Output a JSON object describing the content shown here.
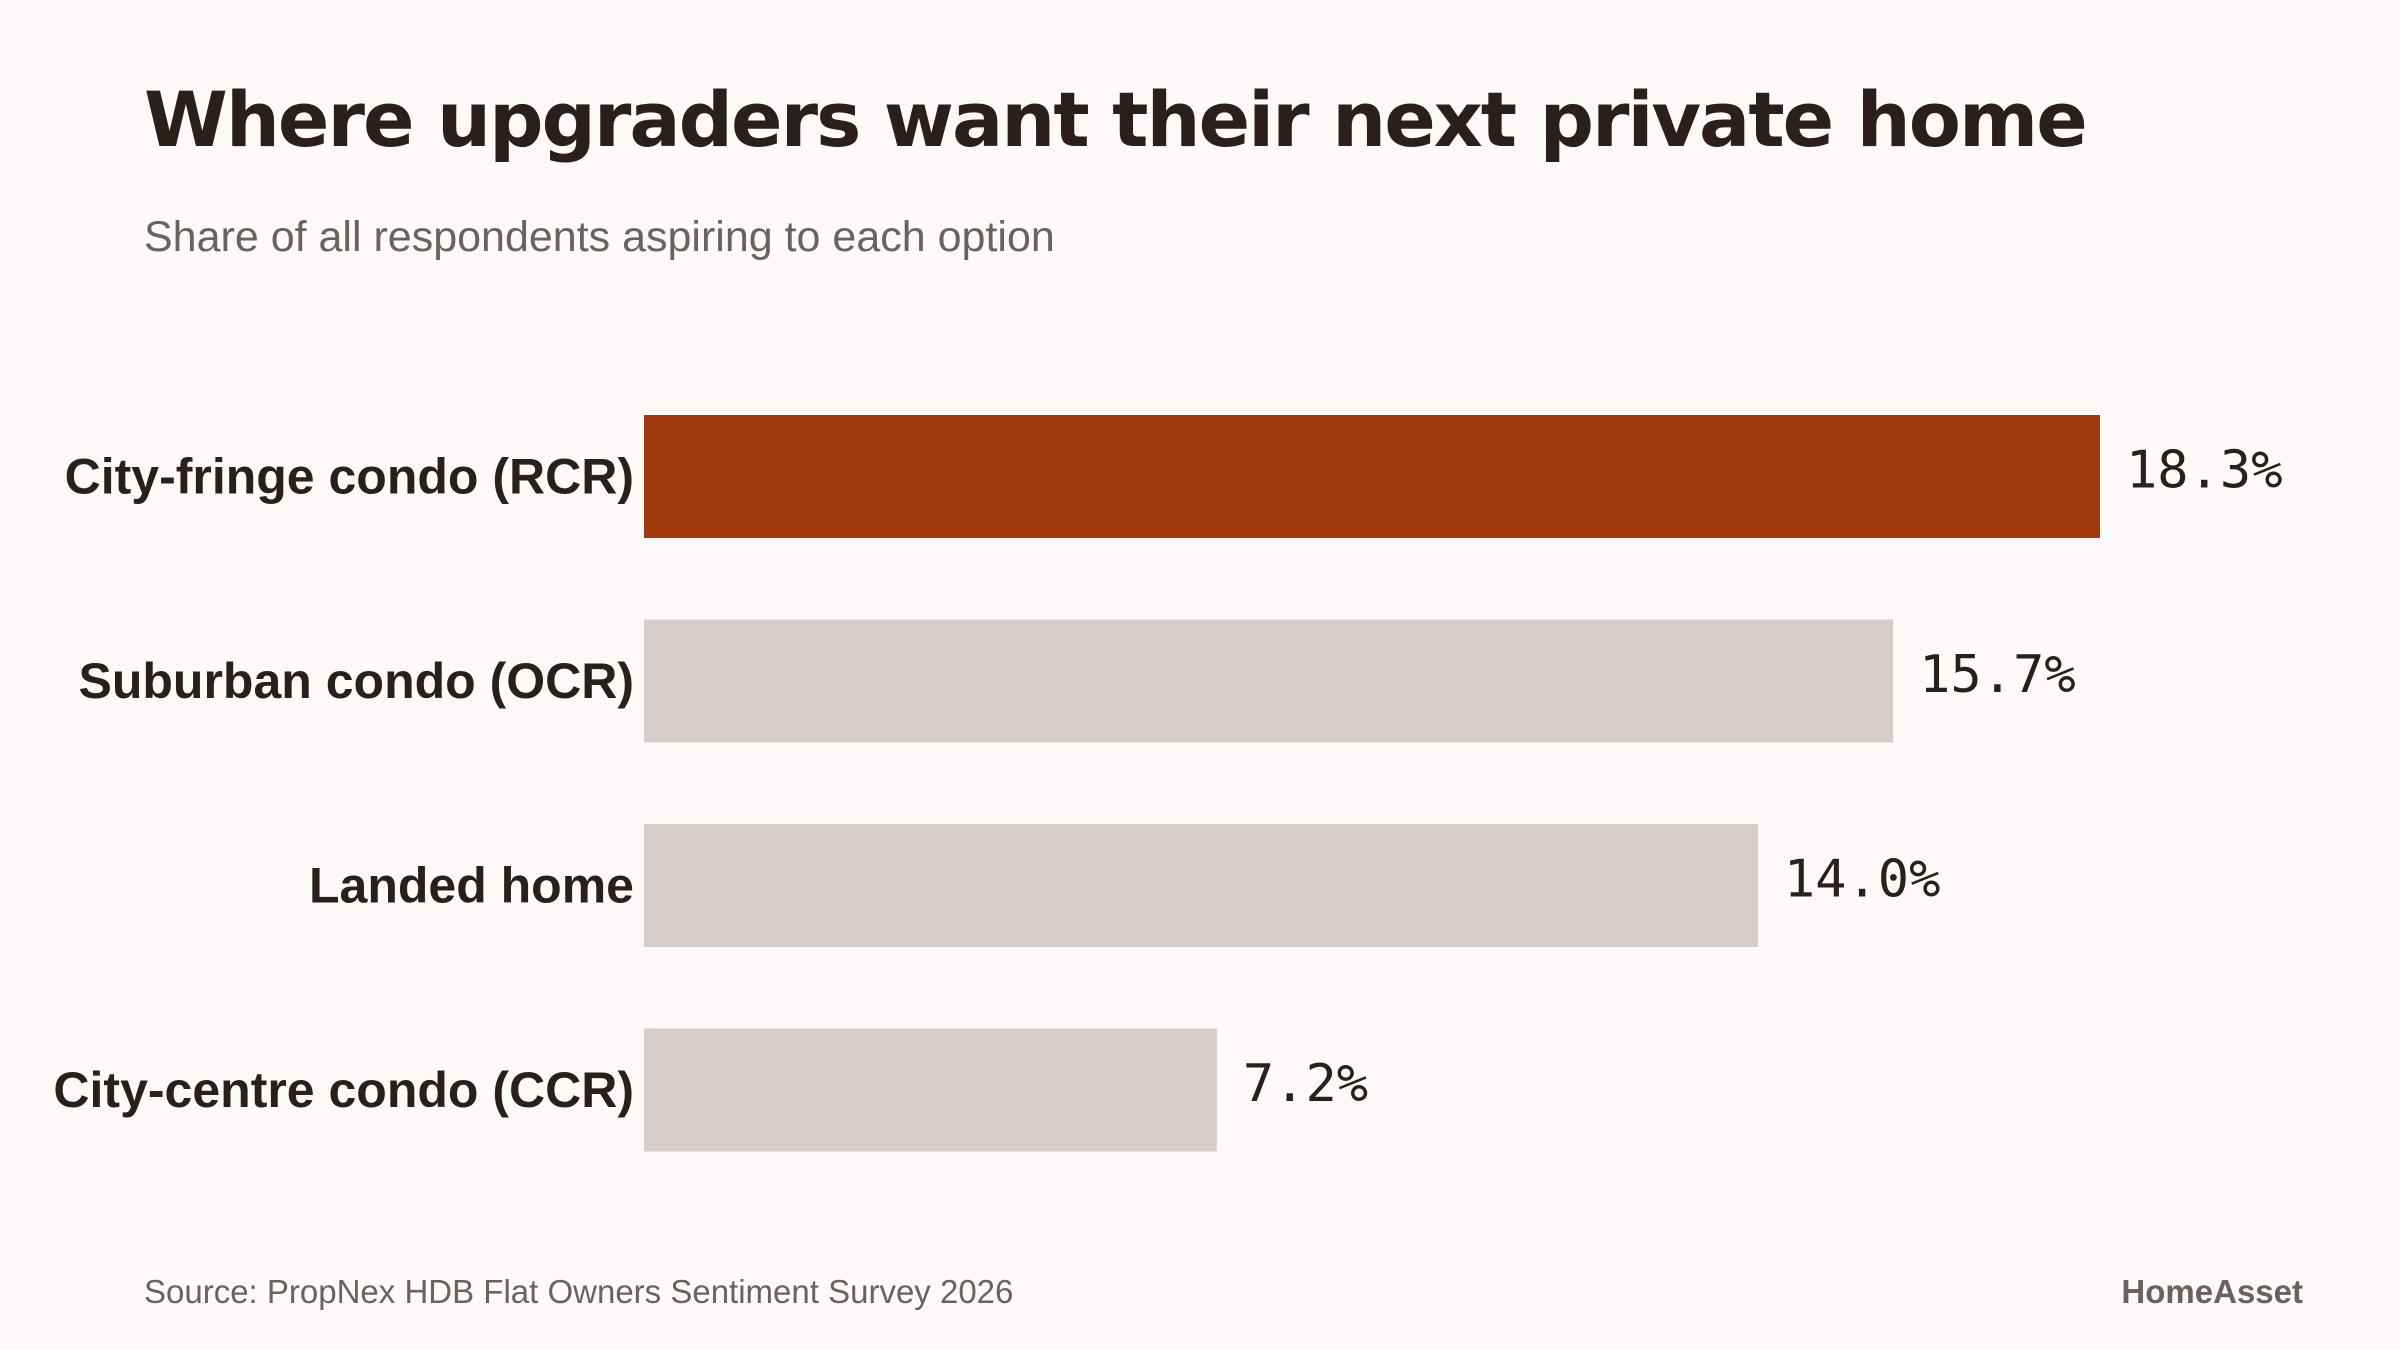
{
  "chart_data": {
    "type": "bar",
    "orientation": "horizontal",
    "title": "Where upgraders want their next private home",
    "subtitle": "Share of all respondents aspiring to each option",
    "categories": [
      "City-fringe condo (RCR)",
      "Suburban condo (OCR)",
      "Landed home",
      "City-centre condo (CCR)"
    ],
    "values": [
      18.3,
      15.7,
      14.0,
      7.2
    ],
    "value_labels": [
      "18.3%",
      "15.7%",
      "14.0%",
      "7.2%"
    ],
    "unit": "%",
    "highlight_index": 0,
    "xlim": [
      0,
      18.3
    ],
    "grid": false,
    "legend": "none",
    "colors": {
      "highlight": "#a33a0e",
      "default": "#d6ccc9",
      "text": "#2a1f1b",
      "muted": "#6b6260",
      "background": "#fdf9f8"
    }
  },
  "footer": {
    "source": "Source: PropNex HDB Flat Owners Sentiment Survey 2026",
    "brand": "HomeAsset"
  }
}
